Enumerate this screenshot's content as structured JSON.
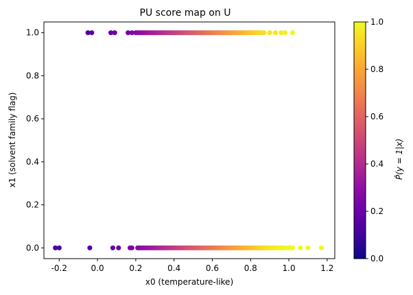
{
  "chart_data": {
    "type": "scatter",
    "title": "PU score map on U",
    "xlabel": "x0 (temperature-like)",
    "ylabel": "x1 (solvent family flag)",
    "xlim": [
      -0.28,
      1.24
    ],
    "ylim": [
      -0.05,
      1.05
    ],
    "xticks": [
      "-0.2",
      "0.0",
      "0.2",
      "0.4",
      "0.6",
      "0.8",
      "1.0",
      "1.2"
    ],
    "yticks": [
      "0.0",
      "0.2",
      "0.4",
      "0.6",
      "0.8",
      "1.0"
    ],
    "grid": false,
    "colorbar": {
      "label": "P̂(y = 1|x)",
      "range": [
        0,
        1
      ],
      "ticks": [
        "0.0",
        "0.2",
        "0.4",
        "0.6",
        "0.8",
        "1.0"
      ],
      "colormap": "plasma"
    },
    "series": [
      {
        "y": 1,
        "x": [
          -0.05,
          -0.03,
          0.07,
          0.09,
          0.16,
          0.18,
          0.2,
          0.21,
          0.22,
          0.23,
          0.24,
          0.25,
          0.26,
          0.27,
          0.28,
          0.29,
          0.3,
          0.31,
          0.32,
          0.33,
          0.34,
          0.35,
          0.36,
          0.37,
          0.38,
          0.39,
          0.4,
          0.41,
          0.42,
          0.43,
          0.44,
          0.45,
          0.46,
          0.47,
          0.48,
          0.49,
          0.5,
          0.51,
          0.52,
          0.53,
          0.54,
          0.55,
          0.56,
          0.57,
          0.58,
          0.59,
          0.6,
          0.61,
          0.62,
          0.63,
          0.64,
          0.65,
          0.66,
          0.67,
          0.68,
          0.69,
          0.7,
          0.71,
          0.72,
          0.73,
          0.74,
          0.75,
          0.76,
          0.77,
          0.78,
          0.79,
          0.8,
          0.81,
          0.82,
          0.83,
          0.84,
          0.85,
          0.86,
          0.87,
          0.9,
          0.93,
          0.96,
          0.98,
          1.02
        ],
        "p": [
          0.14,
          0.15,
          0.2,
          0.21,
          0.23,
          0.25,
          0.27,
          0.28,
          0.29,
          0.3,
          0.31,
          0.32,
          0.33,
          0.34,
          0.35,
          0.36,
          0.37,
          0.38,
          0.39,
          0.4,
          0.41,
          0.42,
          0.43,
          0.44,
          0.45,
          0.46,
          0.47,
          0.48,
          0.49,
          0.5,
          0.51,
          0.52,
          0.53,
          0.54,
          0.55,
          0.56,
          0.57,
          0.58,
          0.59,
          0.6,
          0.61,
          0.62,
          0.63,
          0.64,
          0.65,
          0.66,
          0.67,
          0.68,
          0.69,
          0.7,
          0.71,
          0.72,
          0.73,
          0.74,
          0.75,
          0.76,
          0.77,
          0.78,
          0.79,
          0.8,
          0.81,
          0.82,
          0.83,
          0.84,
          0.85,
          0.86,
          0.87,
          0.88,
          0.89,
          0.9,
          0.91,
          0.92,
          0.93,
          0.94,
          0.95,
          0.96,
          0.97,
          0.98,
          0.99
        ]
      },
      {
        "y": 0,
        "x": [
          -0.22,
          -0.2,
          -0.04,
          0.08,
          0.11,
          0.17,
          0.18,
          0.21,
          0.22,
          0.23,
          0.24,
          0.25,
          0.26,
          0.27,
          0.28,
          0.29,
          0.3,
          0.31,
          0.32,
          0.33,
          0.34,
          0.35,
          0.36,
          0.37,
          0.38,
          0.39,
          0.4,
          0.41,
          0.42,
          0.43,
          0.44,
          0.45,
          0.46,
          0.47,
          0.48,
          0.49,
          0.5,
          0.51,
          0.52,
          0.53,
          0.54,
          0.55,
          0.56,
          0.57,
          0.58,
          0.59,
          0.6,
          0.61,
          0.62,
          0.63,
          0.64,
          0.65,
          0.66,
          0.67,
          0.68,
          0.69,
          0.7,
          0.71,
          0.72,
          0.73,
          0.74,
          0.75,
          0.76,
          0.77,
          0.78,
          0.79,
          0.8,
          0.81,
          0.82,
          0.83,
          0.84,
          0.85,
          0.86,
          0.87,
          0.88,
          0.89,
          0.9,
          0.91,
          0.92,
          0.93,
          0.94,
          0.95,
          0.96,
          0.97,
          0.98,
          1.0,
          1.01,
          1.02,
          1.06,
          1.1,
          1.17
        ],
        "p": [
          0.12,
          0.13,
          0.15,
          0.2,
          0.21,
          0.24,
          0.25,
          0.27,
          0.28,
          0.29,
          0.3,
          0.31,
          0.32,
          0.33,
          0.34,
          0.35,
          0.36,
          0.37,
          0.38,
          0.39,
          0.4,
          0.41,
          0.42,
          0.43,
          0.44,
          0.45,
          0.46,
          0.47,
          0.48,
          0.49,
          0.5,
          0.51,
          0.52,
          0.53,
          0.54,
          0.55,
          0.56,
          0.57,
          0.58,
          0.59,
          0.6,
          0.61,
          0.62,
          0.63,
          0.64,
          0.65,
          0.66,
          0.67,
          0.68,
          0.69,
          0.7,
          0.71,
          0.72,
          0.73,
          0.74,
          0.75,
          0.76,
          0.77,
          0.78,
          0.79,
          0.8,
          0.81,
          0.82,
          0.83,
          0.84,
          0.85,
          0.86,
          0.87,
          0.88,
          0.89,
          0.9,
          0.91,
          0.92,
          0.93,
          0.94,
          0.95,
          0.95,
          0.96,
          0.96,
          0.97,
          0.97,
          0.98,
          0.98,
          0.98,
          0.99,
          0.99,
          0.99,
          1.0,
          1.0,
          1.0,
          1.0
        ]
      }
    ]
  }
}
